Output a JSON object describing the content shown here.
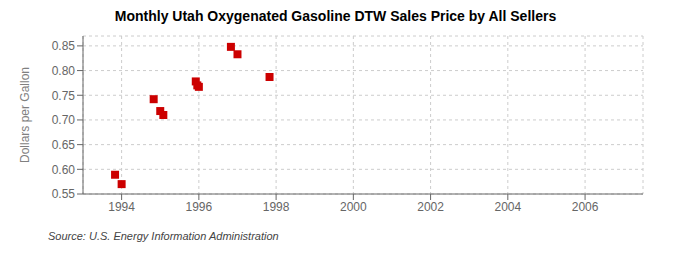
{
  "chart_data": {
    "type": "scatter",
    "title": "Monthly Utah Oxygenated Gasoline DTW Sales Price by All Sellers",
    "ylabel": "Dollars per Gallon",
    "annotations": [
      "Source: U.S. Energy Information Administration"
    ],
    "x": [
      1993.83,
      1994.0,
      1994.83,
      1995.0,
      1995.08,
      1995.92,
      1995.96,
      1996.0,
      1996.83,
      1997.0,
      1997.83
    ],
    "values": [
      0.589,
      0.57,
      0.742,
      0.718,
      0.71,
      0.778,
      0.77,
      0.767,
      0.848,
      0.833,
      0.787
    ],
    "color": "#cc0000",
    "marker": "square",
    "xlim": [
      1993.0,
      2007.5
    ],
    "ylim": [
      0.55,
      0.87
    ],
    "xticks": [
      1994,
      1996,
      1998,
      2000,
      2002,
      2004,
      2006
    ],
    "yticks": [
      0.55,
      {
        "value": 0.6,
        "label": "0.60"
      },
      0.65,
      {
        "value": 0.7,
        "label": "0.70"
      },
      0.75,
      {
        "value": 0.8,
        "label": "0.80"
      },
      0.85
    ],
    "grid": true
  }
}
